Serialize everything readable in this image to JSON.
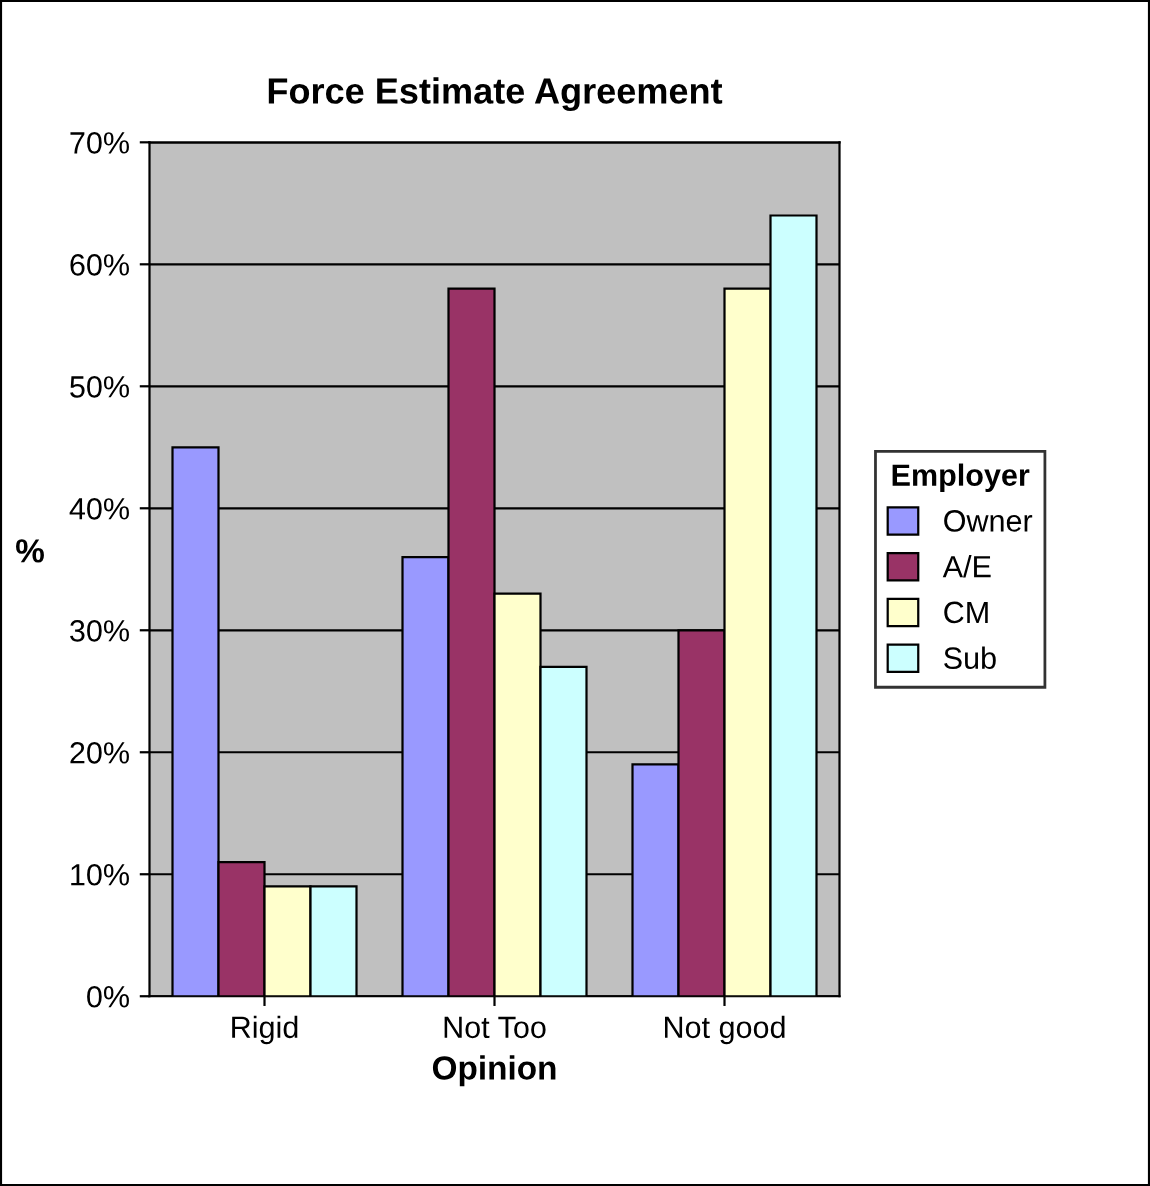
{
  "chart_data": {
    "type": "bar",
    "title": "Force Estimate Agreement",
    "xlabel": "Opinion",
    "ylabel": "%",
    "legend_title": "Employer",
    "categories": [
      "Rigid",
      "Not Too",
      "Not good"
    ],
    "series": [
      {
        "name": "Owner",
        "color": "#9999ff",
        "values": [
          45,
          36,
          19
        ]
      },
      {
        "name": "A/E",
        "color": "#993366",
        "values": [
          11,
          58,
          30
        ]
      },
      {
        "name": "CM",
        "color": "#ffffcc",
        "values": [
          9,
          33,
          58
        ]
      },
      {
        "name": "Sub",
        "color": "#ccffff",
        "values": [
          9,
          27,
          64
        ]
      }
    ],
    "ylim": [
      0,
      70
    ],
    "yticks": [
      {
        "value": 0,
        "label": "0%"
      },
      {
        "value": 10,
        "label": "10%"
      },
      {
        "value": 20,
        "label": "20%"
      },
      {
        "value": 30,
        "label": "30%"
      },
      {
        "value": 40,
        "label": "40%"
      },
      {
        "value": 50,
        "label": "50%"
      },
      {
        "value": 60,
        "label": "60%"
      },
      {
        "value": 70,
        "label": "70%"
      }
    ],
    "grid": "y",
    "legend": "right"
  }
}
